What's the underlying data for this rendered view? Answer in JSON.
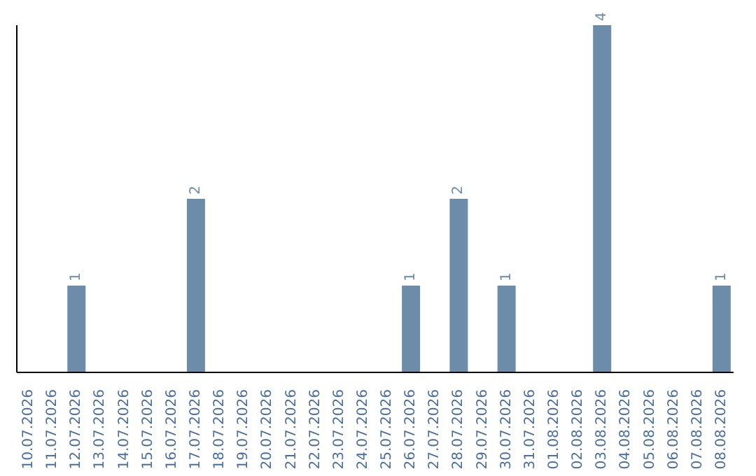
{
  "chart_data": {
    "type": "bar",
    "categories": [
      "10.07.2026",
      "11.07.2026",
      "12.07.2026",
      "13.07.2026",
      "14.07.2026",
      "15.07.2026",
      "16.07.2026",
      "17.07.2026",
      "18.07.2026",
      "19.07.2026",
      "20.07.2026",
      "21.07.2026",
      "22.07.2026",
      "23.07.2026",
      "24.07.2026",
      "25.07.2026",
      "26.07.2026",
      "27.07.2026",
      "28.07.2026",
      "29.07.2026",
      "30.07.2026",
      "31.07.2026",
      "01.08.2026",
      "02.08.2026",
      "03.08.2026",
      "04.08.2026",
      "05.08.2026",
      "06.08.2026",
      "07.08.2026",
      "08.08.2026"
    ],
    "values": [
      0,
      0,
      1,
      0,
      0,
      0,
      0,
      2,
      0,
      0,
      0,
      0,
      0,
      0,
      0,
      0,
      1,
      0,
      2,
      0,
      1,
      0,
      0,
      0,
      4,
      0,
      0,
      0,
      0,
      1
    ],
    "value_labels": [
      null,
      null,
      "1",
      null,
      null,
      null,
      null,
      "2",
      null,
      null,
      null,
      null,
      null,
      null,
      null,
      null,
      "1",
      null,
      "2",
      null,
      "1",
      null,
      null,
      null,
      "4",
      null,
      null,
      null,
      null,
      "1"
    ],
    "color": "#6d8caa"
  }
}
